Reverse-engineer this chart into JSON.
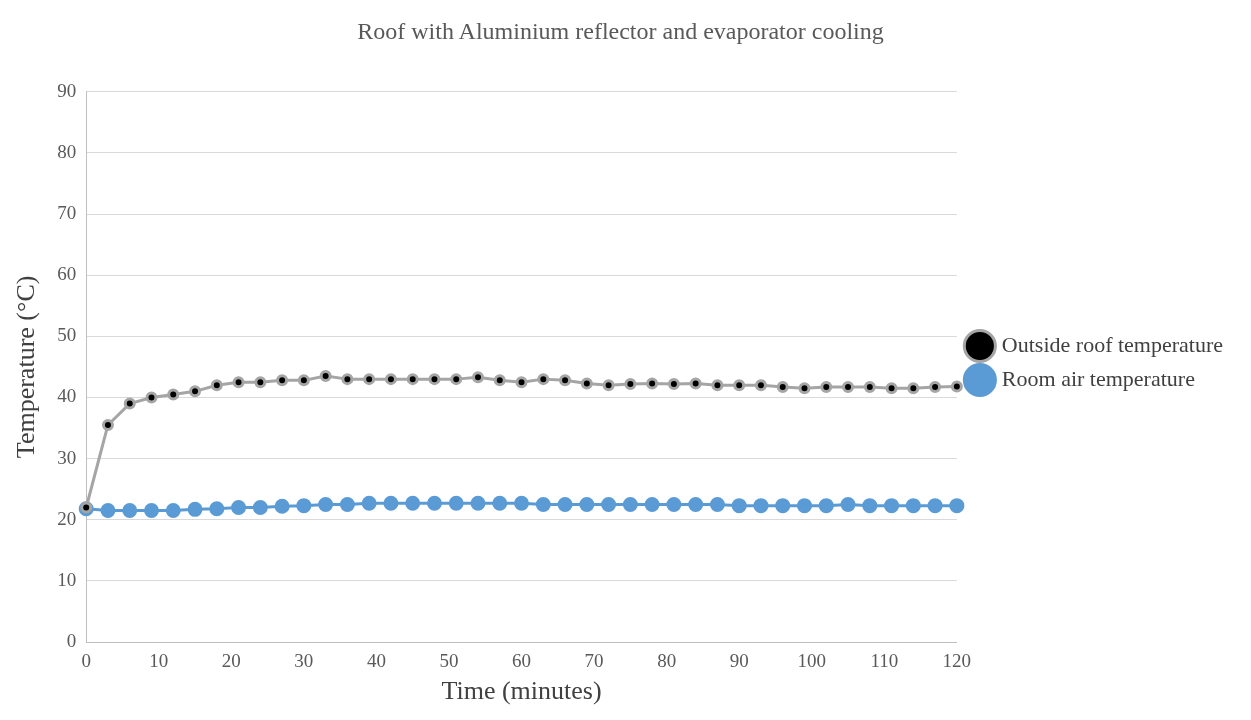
{
  "chart_data": {
    "type": "line",
    "title": "Roof with Aluminium reflector and evaporator cooling",
    "xlabel": "Time (minutes)",
    "ylabel": "Temperature (°C)",
    "x": [
      0,
      3,
      6,
      9,
      12,
      15,
      18,
      21,
      24,
      27,
      30,
      33,
      36,
      39,
      42,
      45,
      48,
      51,
      54,
      57,
      60,
      63,
      66,
      69,
      72,
      75,
      78,
      81,
      84,
      87,
      90,
      93,
      96,
      99,
      102,
      105,
      108,
      111,
      114,
      117,
      120
    ],
    "series": [
      {
        "name": "Room air temperature",
        "color": "#5b9bd5",
        "values": [
          21.8,
          21.5,
          21.5,
          21.5,
          21.5,
          21.7,
          21.8,
          22,
          22,
          22.2,
          22.3,
          22.5,
          22.5,
          22.7,
          22.7,
          22.7,
          22.7,
          22.7,
          22.7,
          22.7,
          22.7,
          22.5,
          22.5,
          22.5,
          22.5,
          22.5,
          22.5,
          22.5,
          22.5,
          22.5,
          22.3,
          22.3,
          22.3,
          22.3,
          22.3,
          22.5,
          22.3,
          22.3,
          22.3,
          22.3,
          22.3
        ]
      },
      {
        "name": "Outside roof temperature",
        "color": "#a5a5a5",
        "values": [
          22,
          35.5,
          39,
          40,
          40.5,
          41,
          42,
          42.5,
          42.5,
          42.8,
          42.8,
          43.5,
          43,
          43,
          43,
          43,
          43,
          43,
          43.3,
          42.8,
          42.5,
          43,
          42.8,
          42.3,
          42,
          42.2,
          42.3,
          42.2,
          42.3,
          42,
          42,
          42,
          41.7,
          41.5,
          41.7,
          41.7,
          41.7,
          41.5,
          41.5,
          41.7,
          41.8
        ]
      }
    ],
    "xlim": [
      0,
      120
    ],
    "xticks": [
      0,
      10,
      20,
      30,
      40,
      50,
      60,
      70,
      80,
      90,
      100,
      110,
      120
    ],
    "ylim": [
      0,
      90
    ],
    "yticks": [
      0,
      10,
      20,
      30,
      40,
      50,
      60,
      70,
      80,
      90
    ],
    "grid": "y",
    "legend": "right",
    "marker": "circle",
    "line_style": "solid"
  }
}
